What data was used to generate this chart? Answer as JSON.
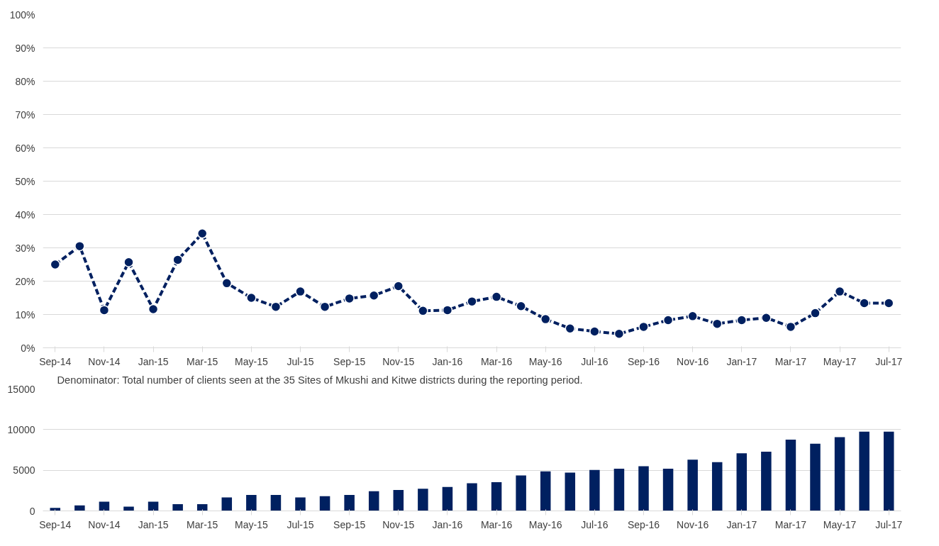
{
  "chart_data": [
    {
      "type": "line",
      "categories": [
        "Sep-14",
        null,
        "Nov-14",
        null,
        "Jan-15",
        null,
        "Mar-15",
        null,
        "May-15",
        null,
        "Jul-15",
        null,
        "Sep-15",
        null,
        "Nov-15",
        null,
        "Jan-16",
        null,
        "Mar-16",
        null,
        "May-16",
        null,
        "Jul-16",
        null,
        "Sep-16",
        null,
        "Nov-16",
        null,
        "Jan-17",
        null,
        "Mar-17",
        null,
        "May-17",
        null,
        "Jul-17"
      ],
      "series": [
        {
          "color": "#002060",
          "values": [
            25,
            30.5,
            11.3,
            25.7,
            11.6,
            26.4,
            34.3,
            19.4,
            15,
            12.3,
            16.9,
            12.3,
            14.8,
            15.7,
            18.5,
            11.1,
            11.3,
            13.9,
            15.3,
            12.5,
            8.6,
            5.8,
            4.9,
            4.2,
            6.3,
            8.3,
            9.5,
            7.2,
            8.3,
            9.0,
            6.3,
            10.4,
            16.9,
            13.4,
            13.4
          ]
        }
      ],
      "ylim": [
        0,
        100
      ],
      "yticks": [
        {
          "value": 0,
          "label": "0%"
        },
        {
          "value": 10,
          "label": "10%"
        },
        {
          "value": 20,
          "label": "20%"
        },
        {
          "value": 30,
          "label": "30%"
        },
        {
          "value": 40,
          "label": "40%"
        },
        {
          "value": 50,
          "label": "50%"
        },
        {
          "value": 60,
          "label": "60%"
        },
        {
          "value": 70,
          "label": "70%"
        },
        {
          "value": 80,
          "label": "80%"
        },
        {
          "value": 90,
          "label": "90%"
        },
        {
          "value": 100,
          "label": "100%"
        }
      ],
      "grid": "y",
      "marker": "circle",
      "line_style": "dashed"
    },
    {
      "type": "bar",
      "categories": [
        "Sep-14",
        null,
        "Nov-14",
        null,
        "Jan-15",
        null,
        "Mar-15",
        null,
        "May-15",
        null,
        "Jul-15",
        null,
        "Sep-15",
        null,
        "Nov-15",
        null,
        "Jan-16",
        null,
        "Mar-16",
        null,
        "May-16",
        null,
        "Jul-16",
        null,
        "Sep-16",
        null,
        "Nov-16",
        null,
        "Jan-17",
        null,
        "Mar-17",
        null,
        "May-17",
        null,
        "Jul-17"
      ],
      "series": [
        {
          "color": "#002060",
          "values": [
            360,
            670,
            1130,
            515,
            1130,
            825,
            825,
            1650,
            1960,
            1960,
            1650,
            1800,
            1960,
            2420,
            2580,
            2730,
            2940,
            3400,
            3540,
            4360,
            4870,
            4720,
            5030,
            5180,
            5490,
            5180,
            6310,
            6000,
            7080,
            7280,
            8770,
            8260,
            9080,
            9740,
            9740
          ]
        }
      ],
      "ylim": [
        0,
        15000
      ],
      "yticks": [
        0,
        5000,
        10000,
        15000
      ],
      "annotations": [
        "Denominator: Total number of clients seen at the 35 Sites of Mkushi and Kitwe districts  during the reporting period."
      ],
      "grid": "y"
    }
  ]
}
